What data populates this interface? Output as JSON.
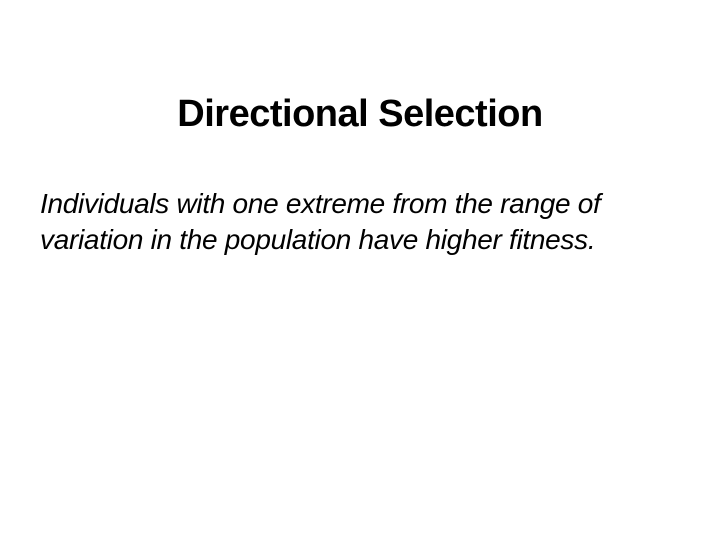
{
  "slide": {
    "title": "Directional Selection",
    "body": "Individuals with one extreme from the range of variation in the population have higher fitness.",
    "title_fontsize": 38,
    "title_fontweight": "bold",
    "body_fontsize": 28,
    "body_fontstyle": "italic",
    "text_color": "#000000",
    "background_color": "#ffffff",
    "font_family": "Verdana, Geneva, sans-serif"
  }
}
